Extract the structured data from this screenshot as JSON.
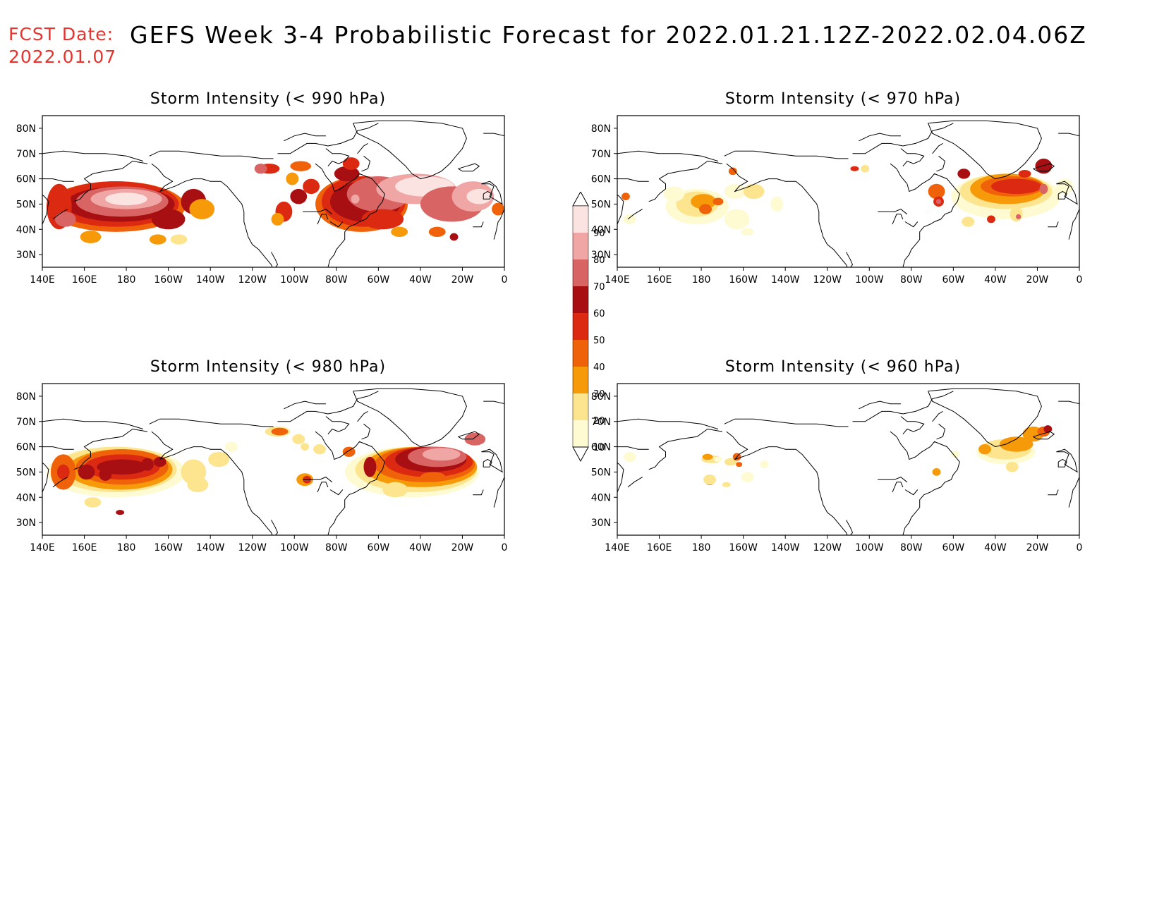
{
  "header": {
    "fcst_label": "FCST Date:",
    "fcst_date": "2022.01.07",
    "title": "GEFS Week 3-4 Probabilistic Forecast for 2022.01.21.12Z-2022.02.04.06Z"
  },
  "axes": {
    "lon_ticks": [
      "140E",
      "160E",
      "180",
      "160W",
      "140W",
      "120W",
      "100W",
      "80W",
      "60W",
      "40W",
      "20W",
      "0"
    ],
    "lat_ticks": [
      "80N",
      "70N",
      "60N",
      "50N",
      "40N",
      "30N"
    ],
    "lon_range": [
      "140E",
      "0"
    ],
    "lat_range": [
      25,
      85
    ]
  },
  "panels": [
    {
      "id": "p990",
      "title": "Storm Intensity (< 990 hPa)"
    },
    {
      "id": "p970",
      "title": "Storm Intensity (< 970 hPa)"
    },
    {
      "id": "p980",
      "title": "Storm Intensity (< 980 hPa)"
    },
    {
      "id": "p960",
      "title": "Storm Intensity (< 960 hPa)"
    }
  ],
  "colorbar": {
    "labels": [
      "90",
      "80",
      "70",
      "60",
      "50",
      "40",
      "30",
      "20",
      "10"
    ],
    "colors": [
      "#fbe3e1",
      "#efa6a4",
      "#d96464",
      "#a70f12",
      "#dc2a12",
      "#f0620a",
      "#f69a0a",
      "#fce58e",
      "#fefbd2"
    ]
  },
  "map_colors": {
    "10": "#fefbd2",
    "20": "#fce58e",
    "30": "#f69a0a",
    "40": "#f0620a",
    "50": "#dc2a12",
    "60": "#a70f12",
    "70": "#d96464",
    "80": "#efa6a4",
    "90": "#fbe3e1"
  }
}
